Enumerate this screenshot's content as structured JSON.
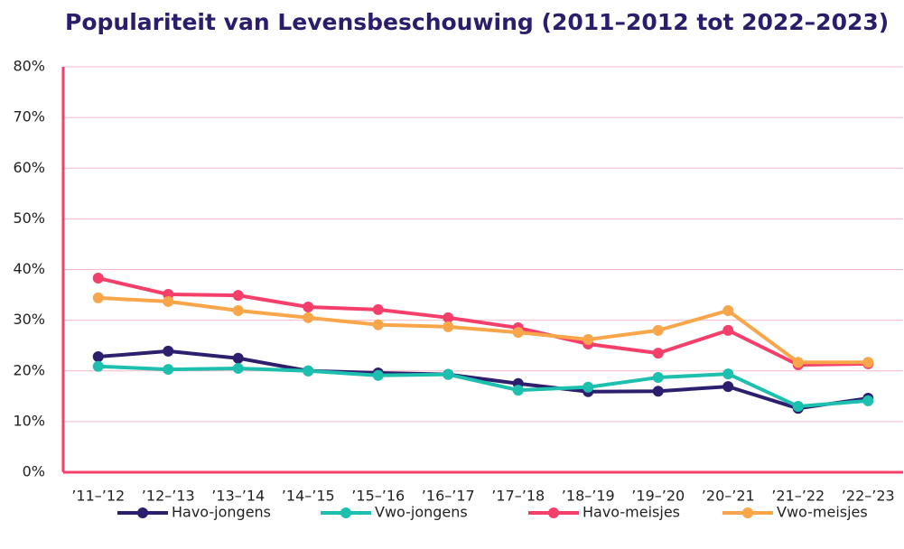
{
  "chart_data": {
    "type": "line",
    "title": "Populariteit van Levensbeschouwing (2011–2012 tot 2022–2023)",
    "categories": [
      "’11–’12",
      "’12–’13",
      "’13–’14",
      "’14–’15",
      "’15–’16",
      "’16–’17",
      "’17–’18",
      "’18–’19",
      "’19–’20",
      "’20–’21",
      "’21–’22",
      "’22–’23"
    ],
    "series": [
      {
        "name": "Havo-jongens",
        "color": "#2d1f6e",
        "values": [
          22.8,
          23.9,
          22.5,
          20.0,
          19.6,
          19.3,
          17.5,
          15.9,
          16.0,
          16.9,
          12.6,
          14.6
        ]
      },
      {
        "name": "Vwo-jongens",
        "color": "#1dbfae",
        "values": [
          20.9,
          20.3,
          20.5,
          20.0,
          19.1,
          19.3,
          16.2,
          16.8,
          18.7,
          19.4,
          13.0,
          14.1
        ]
      },
      {
        "name": "Havo-meisjes",
        "color": "#f43f6a",
        "values": [
          38.3,
          35.1,
          34.9,
          32.6,
          32.1,
          30.5,
          28.5,
          25.3,
          23.5,
          28.0,
          21.2,
          21.4
        ]
      },
      {
        "name": "Vwo-meisjes",
        "color": "#f9a54a",
        "values": [
          34.4,
          33.7,
          31.9,
          30.5,
          29.1,
          28.7,
          27.6,
          26.2,
          28.0,
          31.9,
          21.7,
          21.7
        ]
      }
    ],
    "ylim": [
      0,
      80
    ],
    "yticks": [
      {
        "value": 0,
        "label": "0%"
      },
      {
        "value": 10,
        "label": "10%"
      },
      {
        "value": 20,
        "label": "20%"
      },
      {
        "value": 30,
        "label": "30%"
      },
      {
        "value": 40,
        "label": "40%"
      },
      {
        "value": 50,
        "label": "50%"
      },
      {
        "value": 60,
        "label": "60%"
      },
      {
        "value": 70,
        "label": "70%"
      },
      {
        "value": 80,
        "label": "80%"
      }
    ],
    "grid": true,
    "legend": "bottom"
  }
}
